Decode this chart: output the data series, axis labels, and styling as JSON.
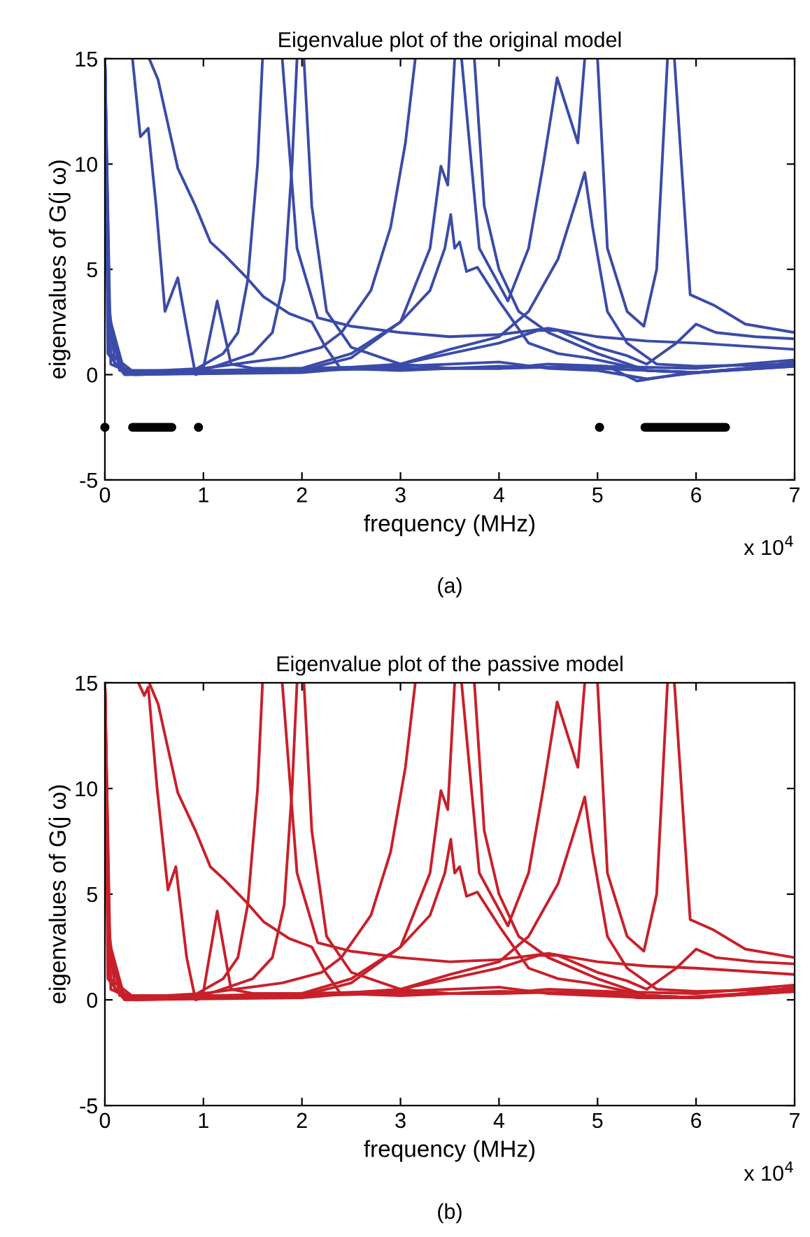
{
  "chart_data": [
    {
      "type": "line",
      "title": "Eigenvalue plot of the original model",
      "xlabel": "frequency (MHz)",
      "ylabel": "eigenvalues of G(j ω)",
      "xlim": [
        0,
        7
      ],
      "ylim": [
        -5,
        15
      ],
      "xticks": [
        0,
        1,
        2,
        3,
        4,
        5,
        6,
        7
      ],
      "yticks": [
        -5,
        0,
        5,
        10,
        15
      ],
      "grid": false,
      "legend": false,
      "annotations": [
        "x 10$^{4}$",
        "(a)"
      ],
      "series": [
        {
          "color": "#3b4ba8",
          "x": [
            0.28,
            0.36,
            0.44,
            0.52,
            0.61,
            0.74,
            0.84,
            0.92,
            0.99,
            1.14,
            1.28,
            1.5,
            2,
            3,
            4,
            4.5,
            5,
            5.5,
            6,
            7
          ],
          "values": [
            15,
            11.3,
            11.7,
            8,
            3.0,
            4.6,
            2,
            0,
            0.1,
            3.5,
            0.5,
            0.3,
            0.3,
            0.4,
            0.6,
            0.3,
            0.2,
            -0.2,
            0.1,
            0.5
          ]
        },
        {
          "color": "#3b4ba8",
          "x": [
            0.45,
            0.54,
            0.74,
            0.92,
            1.07,
            1.21,
            1.42,
            1.61,
            1.87,
            2.1,
            2.24,
            2.39,
            3,
            4,
            5,
            6,
            7
          ],
          "values": [
            15,
            14,
            9.8,
            8.0,
            6.3,
            5.7,
            4.7,
            3.7,
            2.9,
            2.5,
            1.3,
            0.3,
            0.2,
            0.4,
            0.3,
            0.1,
            0.4
          ]
        },
        {
          "color": "#3b4ba8",
          "x": [
            0,
            0.03,
            0.1,
            0.3,
            0.9,
            1.2,
            1.35,
            1.45,
            1.55,
            1.6,
            1.7,
            1.8,
            1.95,
            2.16,
            2.5,
            3,
            3.5,
            4,
            4.5,
            5,
            5.5,
            6,
            7
          ],
          "values": [
            15,
            4,
            0.5,
            0.1,
            0.2,
            1,
            2,
            4.5,
            10,
            15,
            null,
            15,
            6,
            2.7,
            2.3,
            2.0,
            1.8,
            1.9,
            2.2,
            1.8,
            1.6,
            1.5,
            1.2
          ]
        },
        {
          "color": "#3b4ba8",
          "x": [
            0,
            0.04,
            0.15,
            1,
            1.5,
            1.7,
            1.82,
            1.9,
            1.95,
            1.98,
            2.02,
            2.1,
            2.25,
            2.5,
            3,
            3.5,
            4,
            5,
            6,
            7
          ],
          "values": [
            15,
            3,
            0.2,
            0.2,
            1.0,
            2.0,
            4.5,
            10,
            15,
            null,
            15,
            8,
            3,
            1.3,
            0.5,
            0.3,
            0.3,
            0.4,
            0.3,
            0.7
          ]
        },
        {
          "color": "#3b4ba8",
          "x": [
            0,
            0.05,
            0.2,
            1,
            1.8,
            2.2,
            2.4,
            2.7,
            2.9,
            3.05,
            3.15,
            3.45,
            3.75,
            3.85,
            4,
            4.2,
            4.5,
            5,
            5.5,
            6,
            7
          ],
          "values": [
            15,
            2,
            0.1,
            0.3,
            0.8,
            1.3,
            2.0,
            4,
            7,
            11,
            15,
            null,
            15,
            8,
            5,
            3,
            2,
            1.0,
            0.2,
            0.1,
            0.4
          ]
        },
        {
          "color": "#3b4ba8",
          "x": [
            0,
            0.03,
            0.2,
            2,
            2.5,
            3,
            3.3,
            3.41,
            3.48,
            3.55,
            3.59,
            3.62,
            3.8,
            4.09,
            4.3,
            4.45,
            4.59,
            4.8,
            4.87,
            4.93,
            5,
            5.1,
            5.3,
            5.47,
            5.6,
            5.71,
            5.74,
            5.78,
            5.94,
            6.18,
            6.5,
            7
          ],
          "values": [
            15,
            3,
            0.1,
            0.2,
            0.8,
            2.5,
            6,
            9.9,
            9.0,
            15,
            null,
            15,
            6,
            3.5,
            6,
            10,
            14.1,
            11,
            15,
            null,
            15,
            6,
            3,
            2.3,
            5,
            15,
            null,
            15,
            3.8,
            3.3,
            2.4,
            2.0
          ]
        },
        {
          "color": "#3b4ba8",
          "x": [
            0,
            0.04,
            0.2,
            2,
            2.5,
            3,
            3.3,
            3.45,
            3.51,
            3.55,
            3.6,
            3.67,
            3.78,
            4,
            4.3,
            4.6,
            4.9,
            5.2,
            5.5,
            6,
            7
          ],
          "values": [
            15,
            2,
            0.1,
            0.3,
            1,
            2.5,
            4,
            6,
            7.6,
            6,
            6.3,
            4.9,
            5.1,
            3.5,
            1.5,
            1.0,
            0.8,
            0.5,
            0.2,
            0.1,
            0.5
          ]
        },
        {
          "color": "#3b4ba8",
          "x": [
            0,
            0.05,
            0.3,
            2,
            3,
            3.5,
            4,
            4.3,
            4.6,
            4.8,
            4.87,
            4.95,
            5.1,
            5.3,
            5.6,
            6,
            7
          ],
          "values": [
            15,
            1,
            0.1,
            0.2,
            0.5,
            1.2,
            1.8,
            3,
            5.5,
            8.5,
            9.6,
            7,
            3,
            1.5,
            0.5,
            0.4,
            0.5
          ]
        },
        {
          "color": "#3b4ba8",
          "x": [
            0,
            0.03,
            0.2,
            2,
            3,
            3.5,
            4,
            4.4,
            4.6,
            5,
            5.3,
            5.5,
            5.8,
            6,
            6.2,
            6.6,
            7
          ],
          "values": [
            15,
            1,
            0.0,
            0.1,
            0.5,
            1.0,
            1.5,
            2.1,
            2.1,
            1.3,
            0.9,
            0.5,
            1.5,
            2.4,
            2.0,
            1.8,
            1.7
          ]
        },
        {
          "color": "#3b4ba8",
          "x": [
            0,
            0.06,
            0.3,
            2,
            3,
            4,
            4.5,
            5.1,
            5.4,
            5.8,
            6.5,
            7
          ],
          "values": [
            15,
            0.5,
            0.0,
            0.2,
            0.3,
            0.3,
            0.5,
            0.4,
            -0.3,
            0,
            0.3,
            0.6
          ]
        },
        {
          "type": "step",
          "color": "#000000",
          "x": [
            0.28,
            0.68,
            1,
            5.48,
            6.3
          ],
          "values": [
            -2.5,
            -2.5,
            null,
            -2.5,
            -2.5
          ]
        },
        {
          "type": "scatter",
          "marker": "circle",
          "color": "#000000",
          "x": [
            0,
            0.95,
            5.02
          ],
          "values": [
            -2.5,
            -2.5,
            -2.5
          ]
        }
      ]
    },
    {
      "type": "line",
      "title": "Eigenvalue plot of the passive model",
      "xlabel": "frequency (MHz)",
      "ylabel": "eigenvalues of G(j ω)",
      "xlim": [
        0,
        7
      ],
      "ylim": [
        -5,
        15
      ],
      "xticks": [
        0,
        1,
        2,
        3,
        4,
        5,
        6,
        7
      ],
      "yticks": [
        -5,
        0,
        5,
        10,
        15
      ],
      "grid": false,
      "legend": false,
      "annotations": [
        "x 10$^{4}$",
        "(b)"
      ],
      "series": [
        {
          "color": "#c8202a",
          "x": [
            0.34,
            0.4,
            0.44,
            0.53,
            0.64,
            0.72,
            0.83,
            0.92,
            0.99,
            1.14,
            1.28,
            1.5,
            2,
            3,
            4,
            4.5,
            5,
            5.5,
            6,
            7
          ],
          "values": [
            15,
            14.4,
            14.8,
            10,
            5.2,
            6.3,
            2,
            0,
            0.1,
            4.2,
            0.5,
            0.3,
            0.3,
            0.4,
            0.6,
            0.3,
            0.2,
            0.1,
            0.1,
            0.5
          ]
        },
        {
          "color": "#c8202a",
          "x": [
            0.45,
            0.54,
            0.74,
            0.92,
            1.07,
            1.21,
            1.42,
            1.61,
            1.87,
            2.1,
            2.24,
            2.39,
            3,
            4,
            5,
            6,
            7
          ],
          "values": [
            15,
            14,
            9.8,
            8.0,
            6.3,
            5.7,
            4.7,
            3.7,
            2.9,
            2.5,
            1.3,
            0.3,
            0.2,
            0.4,
            0.3,
            0.1,
            0.4
          ]
        },
        {
          "color": "#c8202a",
          "x": [
            0,
            0.03,
            0.1,
            0.3,
            0.9,
            1.2,
            1.35,
            1.45,
            1.55,
            1.6,
            1.7,
            1.8,
            1.95,
            2.16,
            2.5,
            3,
            3.5,
            4,
            4.5,
            5,
            5.5,
            6,
            7
          ],
          "values": [
            15,
            4,
            0.5,
            0.1,
            0.2,
            1,
            2,
            4.5,
            10,
            15,
            null,
            15,
            6,
            2.7,
            2.3,
            2.0,
            1.8,
            1.9,
            2.2,
            1.8,
            1.6,
            1.5,
            1.2
          ]
        },
        {
          "color": "#c8202a",
          "x": [
            0,
            0.04,
            0.15,
            1,
            1.5,
            1.7,
            1.82,
            1.9,
            1.95,
            1.98,
            2.02,
            2.1,
            2.25,
            2.5,
            3,
            3.5,
            4,
            5,
            6,
            7
          ],
          "values": [
            15,
            3,
            0.2,
            0.2,
            1.0,
            2.0,
            4.5,
            10,
            15,
            null,
            15,
            8,
            3,
            1.3,
            0.5,
            0.3,
            0.3,
            0.4,
            0.3,
            0.7
          ]
        },
        {
          "color": "#c8202a",
          "x": [
            0,
            0.05,
            0.2,
            1,
            1.8,
            2.2,
            2.4,
            2.7,
            2.9,
            3.05,
            3.15,
            3.45,
            3.75,
            3.85,
            4,
            4.2,
            4.5,
            5,
            5.5,
            6,
            7
          ],
          "values": [
            15,
            2,
            0.1,
            0.3,
            0.8,
            1.3,
            2.0,
            4,
            7,
            11,
            15,
            null,
            15,
            8,
            5,
            3,
            2,
            1.0,
            0.2,
            0.1,
            0.4
          ]
        },
        {
          "color": "#c8202a",
          "x": [
            0,
            0.03,
            0.2,
            2,
            2.5,
            3,
            3.3,
            3.41,
            3.48,
            3.55,
            3.59,
            3.62,
            3.8,
            4.09,
            4.3,
            4.45,
            4.59,
            4.8,
            4.87,
            4.93,
            5,
            5.1,
            5.3,
            5.47,
            5.6,
            5.71,
            5.74,
            5.78,
            5.94,
            6.18,
            6.5,
            7
          ],
          "values": [
            15,
            3,
            0.1,
            0.2,
            0.8,
            2.5,
            6,
            9.9,
            9.0,
            15,
            null,
            15,
            6,
            3.5,
            6,
            10,
            14.1,
            11,
            15,
            null,
            15,
            6,
            3,
            2.3,
            5,
            15,
            null,
            15,
            3.8,
            3.3,
            2.4,
            2.0
          ]
        },
        {
          "color": "#c8202a",
          "x": [
            0,
            0.04,
            0.2,
            2,
            2.5,
            3,
            3.3,
            3.45,
            3.51,
            3.55,
            3.6,
            3.67,
            3.78,
            4,
            4.3,
            4.6,
            4.9,
            5.2,
            5.5,
            6,
            7
          ],
          "values": [
            15,
            2,
            0.1,
            0.3,
            1,
            2.5,
            4,
            6,
            7.6,
            6,
            6.3,
            4.9,
            5.1,
            3.5,
            1.5,
            1.0,
            0.8,
            0.5,
            0.2,
            0.1,
            0.5
          ]
        },
        {
          "color": "#c8202a",
          "x": [
            0,
            0.05,
            0.3,
            2,
            3,
            3.5,
            4,
            4.3,
            4.6,
            4.8,
            4.87,
            4.95,
            5.1,
            5.3,
            5.6,
            6,
            7
          ],
          "values": [
            15,
            1,
            0.1,
            0.2,
            0.5,
            1.2,
            1.8,
            3,
            5.5,
            8.5,
            9.6,
            7,
            3,
            1.5,
            0.5,
            0.4,
            0.5
          ]
        },
        {
          "color": "#c8202a",
          "x": [
            0,
            0.03,
            0.2,
            2,
            3,
            3.5,
            4,
            4.4,
            4.6,
            5,
            5.3,
            5.5,
            5.8,
            6,
            6.2,
            6.6,
            7
          ],
          "values": [
            15,
            1,
            0.0,
            0.1,
            0.5,
            1.0,
            1.5,
            2.1,
            2.1,
            1.3,
            0.9,
            0.5,
            1.5,
            2.4,
            2.0,
            1.8,
            1.7
          ]
        },
        {
          "color": "#c8202a",
          "x": [
            0,
            0.06,
            0.3,
            2,
            3,
            4,
            4.5,
            5.1,
            5.4,
            5.8,
            6.5,
            7
          ],
          "values": [
            15,
            0.5,
            0.0,
            0.2,
            0.3,
            0.3,
            0.5,
            0.4,
            0.1,
            0.1,
            0.3,
            0.6
          ]
        }
      ]
    }
  ]
}
